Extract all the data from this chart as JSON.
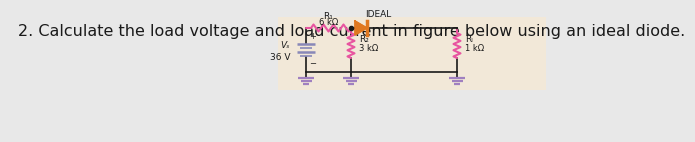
{
  "title": "2. Calculate the load voltage and load current in figure below using an ideal diode.",
  "title_fontsize": 11.5,
  "title_color": "#1a1a1a",
  "bg_color": "#f2e8d8",
  "resistor_color": "#e855a0",
  "diode_color": "#e07820",
  "ground_color": "#a080c0",
  "wire_color": "#1a1a1a",
  "text_color": "#1a1a1a",
  "R1_label": "R₁",
  "R1_val": "6 kΩ",
  "R2_label": "R₂",
  "R2_val": "3 kΩ",
  "RL_label": "Rₗ",
  "RL_val": "1 kΩ",
  "diode_label": "IDEAL",
  "Vs_label": "Vₛ",
  "Vs_val": "36 V"
}
